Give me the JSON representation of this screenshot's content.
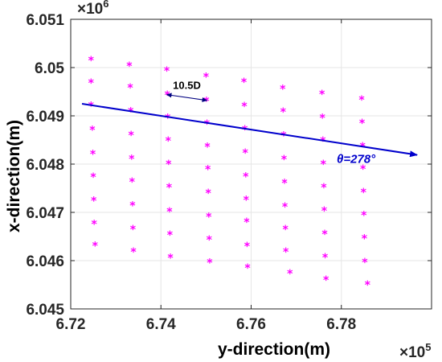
{
  "chart_data": {
    "type": "scatter",
    "title": "",
    "xlabel": "y-direction(m)",
    "ylabel": "x-direction(m)",
    "x_exponent_label": "×10",
    "x_exponent_power": "5",
    "y_exponent_label": "×10",
    "y_exponent_power": "6",
    "xlim": [
      6.72,
      6.8
    ],
    "ylim": [
      6.045,
      6.051
    ],
    "x_ticks": [
      6.72,
      6.74,
      6.76,
      6.78
    ],
    "x_tick_labels": [
      "6.72",
      "6.74",
      "6.76",
      "6.78"
    ],
    "y_ticks": [
      6.045,
      6.046,
      6.047,
      6.048,
      6.049,
      6.05,
      6.051
    ],
    "y_tick_labels": [
      "6.045",
      "6.046",
      "6.047",
      "6.048",
      "6.049",
      "6.05",
      "6.051"
    ],
    "grid": true,
    "marker_color": "#ff00ff",
    "arrow_color": "#0000cc",
    "series": [
      {
        "marker": "*",
        "points": [
          [
            6.7245,
            6.05015
          ],
          [
            6.7245,
            6.04968
          ],
          [
            6.7245,
            6.04921
          ],
          [
            6.7248,
            6.04871
          ],
          [
            6.7249,
            6.04821
          ],
          [
            6.725,
            6.04773
          ],
          [
            6.7251,
            6.04724
          ],
          [
            6.7252,
            6.04676
          ],
          [
            6.7254,
            6.04631
          ],
          [
            6.733,
            6.05003
          ],
          [
            6.7332,
            6.04958
          ],
          [
            6.7333,
            6.04909
          ],
          [
            6.7334,
            6.0486
          ],
          [
            6.7335,
            6.04811
          ],
          [
            6.7336,
            6.04763
          ],
          [
            6.7337,
            6.04714
          ],
          [
            6.7338,
            6.04665
          ],
          [
            6.7339,
            6.04618
          ],
          [
            6.7413,
            6.04993
          ],
          [
            6.7414,
            6.04943
          ],
          [
            6.7415,
            6.04896
          ],
          [
            6.7416,
            6.04848
          ],
          [
            6.7417,
            6.048
          ],
          [
            6.7418,
            6.04752
          ],
          [
            6.7419,
            6.04702
          ],
          [
            6.742,
            6.04653
          ],
          [
            6.7421,
            6.04606
          ],
          [
            6.75,
            6.04981
          ],
          [
            6.7501,
            6.04931
          ],
          [
            6.7502,
            6.04883
          ],
          [
            6.7503,
            6.04836
          ],
          [
            6.7504,
            6.04789
          ],
          [
            6.7505,
            6.0474
          ],
          [
            6.7506,
            6.04691
          ],
          [
            6.7507,
            6.04643
          ],
          [
            6.7508,
            6.04596
          ],
          [
            6.7584,
            6.0497
          ],
          [
            6.7585,
            6.0492
          ],
          [
            6.7586,
            6.04872
          ],
          [
            6.7587,
            6.04823
          ],
          [
            6.7588,
            6.04774
          ],
          [
            6.7589,
            6.04726
          ],
          [
            6.759,
            6.0468
          ],
          [
            6.7591,
            6.0463
          ],
          [
            6.7592,
            6.04585
          ],
          [
            6.767,
            6.04956
          ],
          [
            6.7671,
            6.04908
          ],
          [
            6.7672,
            6.04859
          ],
          [
            6.7673,
            6.0481
          ],
          [
            6.7674,
            6.04761
          ],
          [
            6.7675,
            6.04712
          ],
          [
            6.7676,
            6.04665
          ],
          [
            6.7677,
            6.04618
          ],
          [
            6.7686,
            6.04573
          ],
          [
            6.7757,
            6.04945
          ],
          [
            6.7758,
            6.04896
          ],
          [
            6.7759,
            6.04848
          ],
          [
            6.776,
            6.048
          ],
          [
            6.7761,
            6.04752
          ],
          [
            6.7762,
            6.04703
          ],
          [
            6.7763,
            6.04655
          ],
          [
            6.7764,
            6.04607
          ],
          [
            6.7766,
            6.0456
          ],
          [
            6.7845,
            6.04933
          ],
          [
            6.7846,
            6.04885
          ],
          [
            6.7847,
            6.04837
          ],
          [
            6.7848,
            6.0479
          ],
          [
            6.7849,
            6.04742
          ],
          [
            6.785,
            6.04694
          ],
          [
            6.7851,
            6.04646
          ],
          [
            6.7852,
            6.04597
          ],
          [
            6.7858,
            6.0455
          ]
        ]
      }
    ],
    "annotations": {
      "wind_arrow": {
        "from": [
          6.7225,
          6.04925
        ],
        "to": [
          6.7968,
          6.04819
        ],
        "label": "θ=278°"
      },
      "spacing": {
        "from": [
          6.7413,
          6.04944
        ],
        "to": [
          6.7502,
          6.04932
        ],
        "label": "10.5D"
      }
    }
  }
}
